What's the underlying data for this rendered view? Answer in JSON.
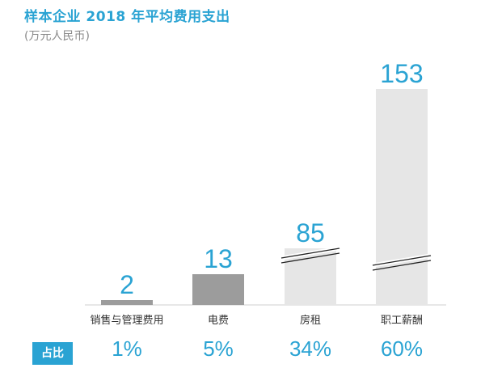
{
  "header": {
    "title": "样本企业 2018 年平均费用支出",
    "unit": "(万元人民币)"
  },
  "share_label": "占比",
  "colors": {
    "accent": "#2aa3d3",
    "bar_dark": "#9c9c9c",
    "bar_light": "#e6e6e6",
    "value_text": "#2aa3d3",
    "category_text": "#333333"
  },
  "chart_data": {
    "type": "bar",
    "title": "样本企业 2018 年平均费用支出",
    "ylabel": "(万元人民币)",
    "categories": [
      "销售与管理费用",
      "电费",
      "房租",
      "职工薪酬"
    ],
    "values": [
      2,
      13,
      85,
      153
    ],
    "shares": [
      "1%",
      "5%",
      "34%",
      "60%"
    ],
    "broken_axis": [
      false,
      false,
      true,
      true
    ],
    "grid": false,
    "legend": "none"
  }
}
